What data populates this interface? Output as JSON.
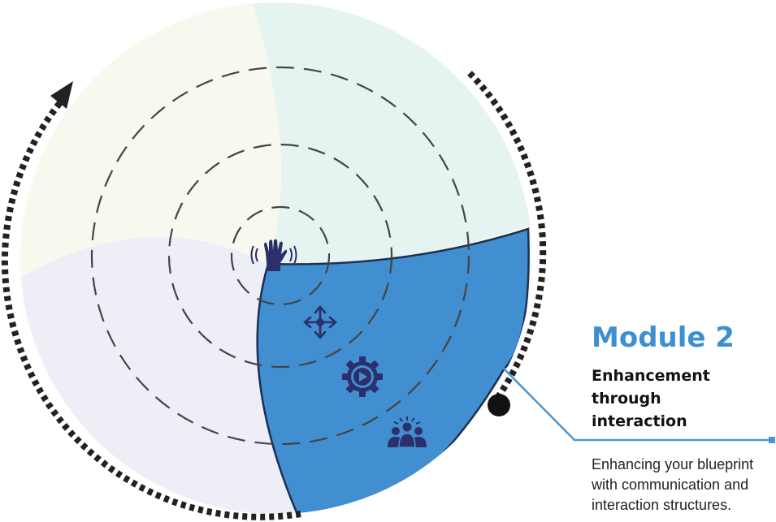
{
  "module": {
    "title": "Module 2",
    "subtitle_lines": [
      "Enhancement",
      "through",
      "interaction"
    ],
    "description_lines": [
      "Enhancing your blueprint",
      "with communication and",
      "interaction structures."
    ]
  },
  "colors": {
    "segment_top_left": "#f9f8ef",
    "segment_top_right": "#e6f4f1",
    "segment_left": "#eeeef7",
    "segment_active": "#418fd0",
    "segment_active_stroke": "#1d2f55",
    "icon_color": "#2c2f6b",
    "title_color": "#3d8fd0",
    "connector_color": "#4a97d6",
    "dashed_ring": "#444444",
    "dotted_arc": "#222222"
  },
  "icons": [
    "wave-hand-icon",
    "move-arrows-icon",
    "gear-play-icon",
    "group-people-icon"
  ]
}
